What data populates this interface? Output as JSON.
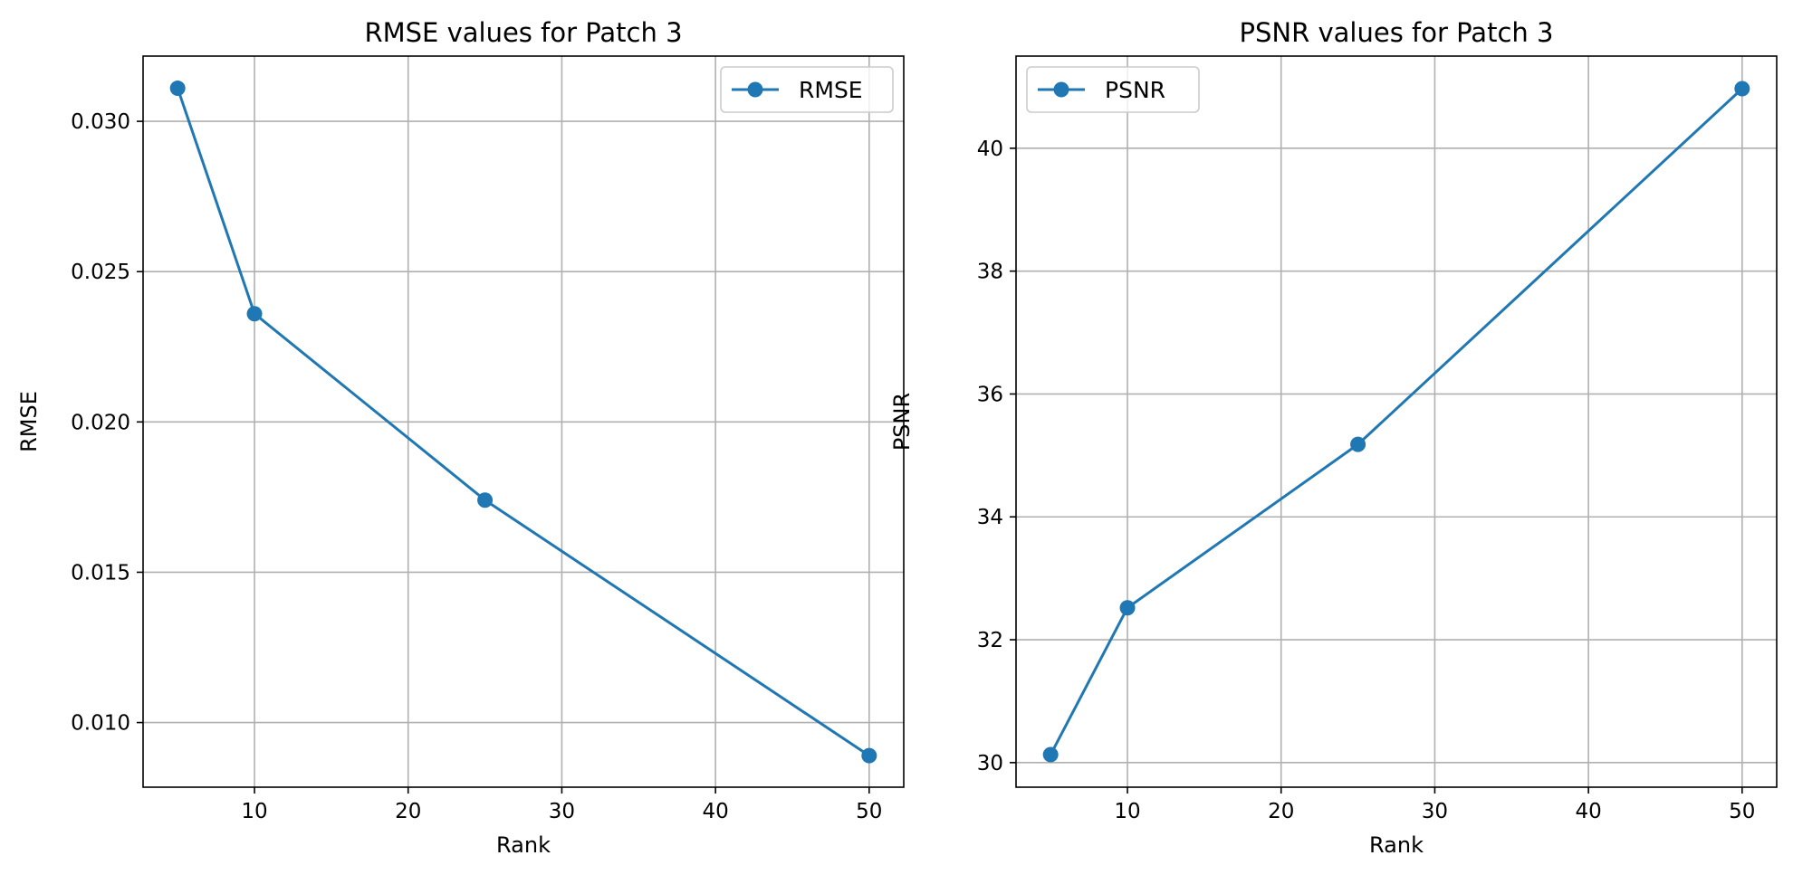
{
  "chart_data": [
    {
      "type": "line",
      "title": "RMSE values for Patch 3",
      "xlabel": "Rank",
      "ylabel": "RMSE",
      "x": [
        5,
        10,
        25,
        50
      ],
      "series": [
        {
          "name": "RMSE",
          "values": [
            0.0311,
            0.0236,
            0.0174,
            0.0089
          ],
          "color": "#1f77b4",
          "marker": "circle"
        }
      ],
      "xlim": [
        2.75,
        52.25
      ],
      "ylim": [
        0.00785,
        0.03217
      ],
      "xticks": [
        10,
        20,
        30,
        40,
        50
      ],
      "xtick_labels": [
        "10",
        "20",
        "30",
        "40",
        "50"
      ],
      "yticks": [
        0.01,
        0.015,
        0.02,
        0.025,
        0.03
      ],
      "ytick_labels": [
        "0.010",
        "0.015",
        "0.020",
        "0.025",
        "0.030"
      ],
      "grid": true,
      "legend_position": "top-right"
    },
    {
      "type": "line",
      "title": "PSNR values for Patch 3",
      "xlabel": "Rank",
      "ylabel": "PSNR",
      "x": [
        5,
        10,
        25,
        50
      ],
      "series": [
        {
          "name": "PSNR",
          "values": [
            30.13,
            32.52,
            35.18,
            40.97
          ],
          "color": "#1f77b4",
          "marker": "circle"
        }
      ],
      "xlim": [
        2.75,
        52.25
      ],
      "ylim": [
        29.6,
        41.5
      ],
      "xticks": [
        10,
        20,
        30,
        40,
        50
      ],
      "xtick_labels": [
        "10",
        "20",
        "30",
        "40",
        "50"
      ],
      "yticks": [
        30,
        32,
        34,
        36,
        38,
        40
      ],
      "ytick_labels": [
        "30",
        "32",
        "34",
        "36",
        "38",
        "40"
      ],
      "grid": true,
      "legend_position": "top-left"
    }
  ]
}
